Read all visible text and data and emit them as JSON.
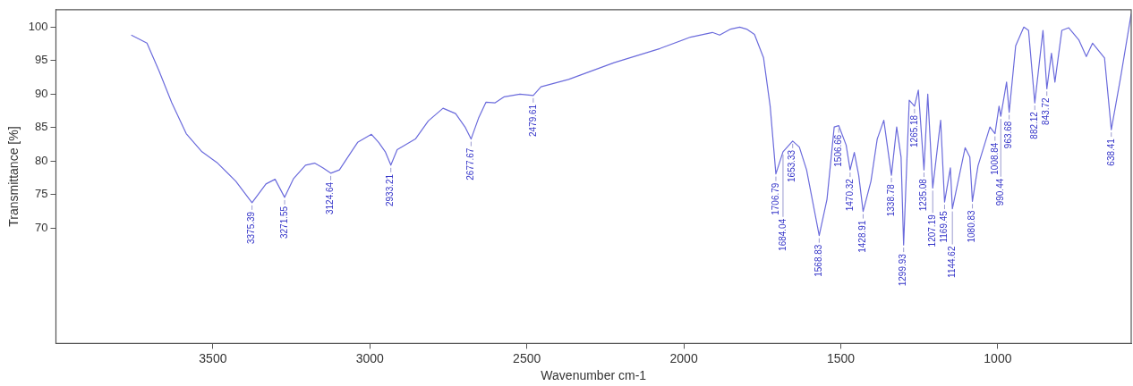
{
  "chart_data": {
    "type": "line",
    "xlabel": "Wavenumber cm-1",
    "ylabel": "Transmittance [%]",
    "xlim": [
      4000,
      575
    ],
    "ylim": [
      52.8,
      102.6
    ],
    "xticks": [
      3500,
      3000,
      2500,
      2000,
      1500,
      1000
    ],
    "yticks": [
      70,
      75,
      80,
      85,
      90,
      95,
      100
    ],
    "grid": false,
    "legend": false,
    "marker": "none",
    "line_style": "solid",
    "series": [
      {
        "color": "#6b6bdc",
        "x": [
          3760,
          3710,
          3672,
          3631,
          3585,
          3535,
          3485,
          3427,
          3375.39,
          3331,
          3302,
          3271.55,
          3243,
          3205,
          3176,
          3150,
          3124.64,
          3097,
          3059,
          3039,
          2995,
          2972,
          2951,
          2933.21,
          2913,
          2855,
          2814,
          2767,
          2727,
          2697,
          2677.67,
          2654,
          2630,
          2601,
          2572,
          2522,
          2479.61,
          2455,
          2367,
          2222,
          2076,
          1979,
          1909,
          1886,
          1851,
          1822,
          1800,
          1775,
          1746,
          1725,
          1706.79,
          1684.04,
          1653.33,
          1632,
          1609,
          1568.83,
          1544,
          1521,
          1506.66,
          1483,
          1470.32,
          1457,
          1443,
          1428.91,
          1404,
          1384,
          1363,
          1338.78,
          1322,
          1308,
          1299.93,
          1282,
          1265.18,
          1253,
          1235.08,
          1223,
          1207.19,
          1182,
          1169.45,
          1151,
          1144.62,
          1104,
          1089,
          1080.83,
          1063,
          1025,
          1008.84,
          996,
          990.44,
          972,
          963.68,
          943,
          917,
          902,
          882.12,
          856,
          843.72,
          829,
          818,
          796,
          774,
          742,
          718,
          698,
          660,
          638.41,
          608,
          575
        ],
        "values": [
          98.8,
          97.6,
          93.5,
          88.7,
          84.1,
          81.4,
          79.7,
          77.0,
          73.8,
          76.6,
          77.3,
          74.6,
          77.4,
          79.4,
          79.7,
          79.0,
          78.2,
          78.7,
          81.4,
          82.8,
          84.0,
          82.8,
          81.4,
          79.4,
          81.7,
          83.3,
          86.0,
          87.9,
          87.1,
          85.1,
          83.3,
          86.4,
          88.8,
          88.7,
          89.6,
          90.0,
          89.8,
          91.1,
          92.2,
          94.7,
          96.8,
          98.5,
          99.2,
          98.8,
          99.7,
          100.0,
          99.7,
          98.9,
          95.4,
          88.2,
          78.1,
          81.4,
          83.0,
          82.1,
          78.7,
          68.9,
          74.3,
          85.1,
          85.3,
          82.4,
          78.7,
          81.3,
          77.9,
          72.5,
          77.0,
          83.3,
          86.1,
          77.9,
          85.1,
          80.6,
          67.5,
          89.1,
          88.2,
          90.6,
          78.7,
          90.0,
          76.0,
          86.1,
          73.9,
          79.0,
          72.9,
          82.0,
          80.6,
          74.0,
          79.3,
          85.1,
          84.1,
          88.2,
          86.7,
          91.8,
          87.3,
          97.2,
          100.0,
          99.5,
          88.7,
          99.5,
          90.8,
          96.1,
          91.8,
          99.5,
          99.9,
          98.1,
          95.6,
          97.6,
          95.4,
          84.7,
          92.7,
          102.0
        ]
      }
    ],
    "annotations": [
      {
        "text": "3375.39",
        "x": 3375.39,
        "y": 73.8
      },
      {
        "text": "3271.55",
        "x": 3271.55,
        "y": 74.6
      },
      {
        "text": "3124.64",
        "x": 3124.64,
        "y": 78.2
      },
      {
        "text": "2933.21",
        "x": 2933.21,
        "y": 79.4
      },
      {
        "text": "2677.67",
        "x": 2677.67,
        "y": 83.3
      },
      {
        "text": "2479.61",
        "x": 2479.61,
        "y": 89.8
      },
      {
        "text": "1706.79",
        "x": 1706.79,
        "y": 78.1
      },
      {
        "text": "1684.04",
        "x": 1684.04,
        "y": 81.4
      },
      {
        "text": "1653.33",
        "x": 1653.33,
        "y": 83.0
      },
      {
        "text": "1568.83",
        "x": 1568.83,
        "y": 68.9
      },
      {
        "text": "1506.66",
        "x": 1506.66,
        "y": 85.3
      },
      {
        "text": "1470.32",
        "x": 1470.32,
        "y": 78.7
      },
      {
        "text": "1428.91",
        "x": 1428.91,
        "y": 72.5
      },
      {
        "text": "1338.78",
        "x": 1338.78,
        "y": 77.9
      },
      {
        "text": "1299.93",
        "x": 1299.93,
        "y": 67.5
      },
      {
        "text": "1265.18",
        "x": 1265.18,
        "y": 88.2
      },
      {
        "text": "1235.08",
        "x": 1235.08,
        "y": 78.7
      },
      {
        "text": "1207.19",
        "x": 1207.19,
        "y": 76.0
      },
      {
        "text": "1169.45",
        "x": 1169.45,
        "y": 73.9
      },
      {
        "text": "1144.62",
        "x": 1144.62,
        "y": 72.9
      },
      {
        "text": "1080.83",
        "x": 1080.83,
        "y": 74.0
      },
      {
        "text": "1008.84",
        "x": 1008.84,
        "y": 84.1
      },
      {
        "text": "990.44",
        "x": 990.44,
        "y": 86.7
      },
      {
        "text": "963.68",
        "x": 963.68,
        "y": 87.3
      },
      {
        "text": "882.12",
        "x": 882.12,
        "y": 88.7
      },
      {
        "text": "843.72",
        "x": 843.72,
        "y": 90.8
      },
      {
        "text": "638.41",
        "x": 638.41,
        "y": 84.7
      }
    ]
  }
}
